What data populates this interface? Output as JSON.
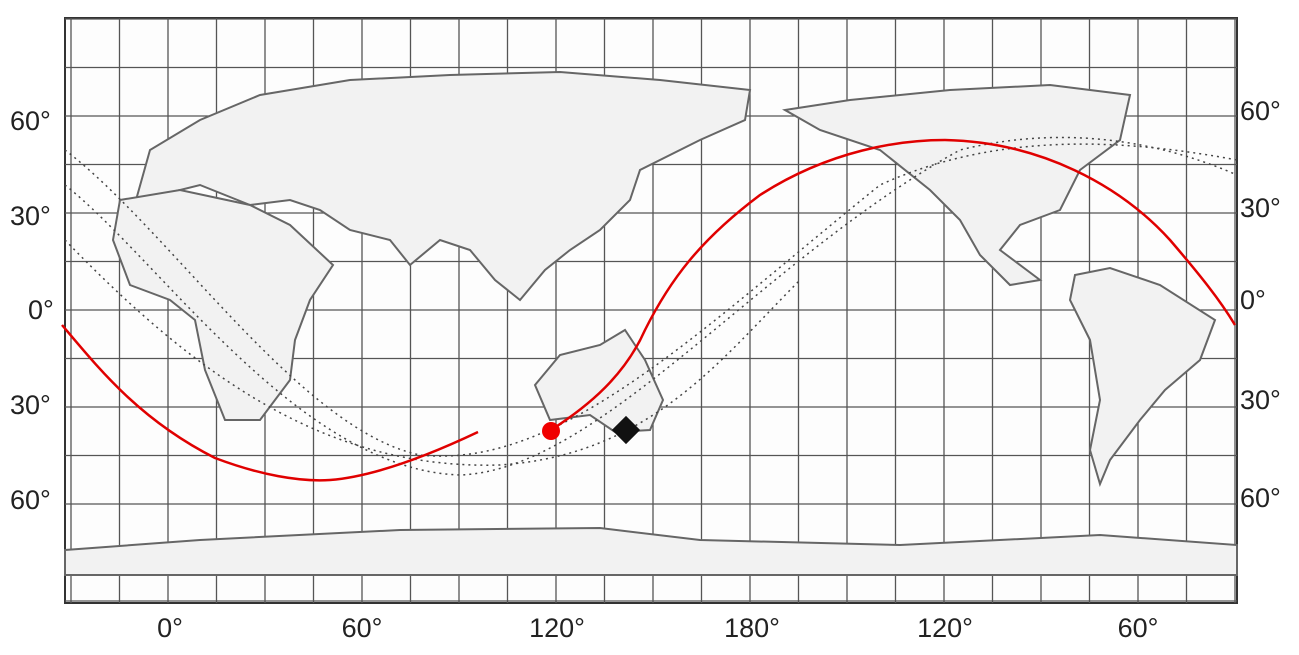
{
  "left_lat_labels": [
    "60°",
    "30°",
    "0°",
    "30°",
    "60°"
  ],
  "right_lat_labels": [
    "60°",
    "30°",
    "0°",
    "30°",
    "60°"
  ],
  "lon_labels": [
    "0°",
    "60°",
    "120°",
    "180°",
    "120°",
    "60°"
  ]
}
